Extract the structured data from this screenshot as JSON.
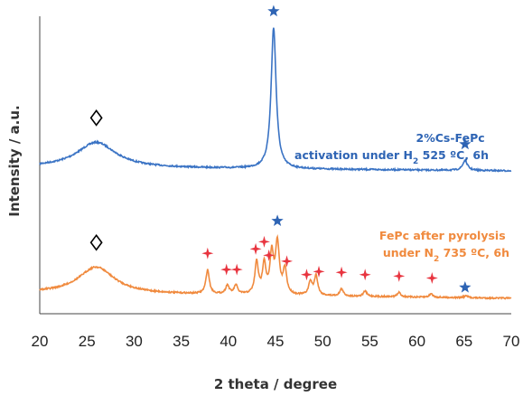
{
  "chart_data": {
    "type": "line",
    "xlabel": "2 theta / degree",
    "ylabel": "Intensity / a.u.",
    "xlim": [
      20,
      70
    ],
    "xticks": [
      "20",
      "25",
      "30",
      "35",
      "40",
      "45",
      "50",
      "55",
      "60",
      "65",
      "70"
    ],
    "grid": false,
    "legend": "none",
    "series": [
      {
        "color": "#3a73c4",
        "annotation": [
          "2%Cs-FePc",
          "activation under H",
          "2",
          " 525 ºC, 6h"
        ],
        "peaks": [
          {
            "x": 26.0,
            "height": 0.18,
            "width": 2.5
          },
          {
            "x": 44.8,
            "height": 1.0,
            "width": 0.32
          },
          {
            "x": 65.1,
            "height": 0.07,
            "width": 0.3
          }
        ],
        "markers": [
          {
            "symbol": "diamond",
            "x": 26.0
          },
          {
            "symbol": "star",
            "x": 44.8
          },
          {
            "symbol": "star",
            "x": 65.1
          }
        ]
      },
      {
        "color": "#f08a3e",
        "annotation": [
          "FePc after pyrolysis",
          "under N",
          "2",
          " 735 ºC, 6h"
        ],
        "peaks": [
          {
            "x": 26.0,
            "height": 0.3,
            "width": 2.3
          },
          {
            "x": 37.8,
            "height": 0.27,
            "width": 0.22
          },
          {
            "x": 39.9,
            "height": 0.1,
            "width": 0.22
          },
          {
            "x": 40.8,
            "height": 0.1,
            "width": 0.22
          },
          {
            "x": 43.0,
            "height": 0.36,
            "width": 0.22
          },
          {
            "x": 43.8,
            "height": 0.34,
            "width": 0.22
          },
          {
            "x": 44.6,
            "height": 0.44,
            "width": 0.22
          },
          {
            "x": 45.2,
            "height": 0.57,
            "width": 0.25
          },
          {
            "x": 46.0,
            "height": 0.28,
            "width": 0.22
          },
          {
            "x": 48.7,
            "height": 0.15,
            "width": 0.22
          },
          {
            "x": 49.3,
            "height": 0.22,
            "width": 0.22
          },
          {
            "x": 52.0,
            "height": 0.08,
            "width": 0.22
          },
          {
            "x": 54.5,
            "height": 0.06,
            "width": 0.22
          },
          {
            "x": 58.1,
            "height": 0.05,
            "width": 0.22
          },
          {
            "x": 61.5,
            "height": 0.04,
            "width": 0.22
          },
          {
            "x": 65.2,
            "height": 0.02,
            "width": 0.25
          }
        ],
        "markers": [
          {
            "symbol": "diamond",
            "x": 26.0
          },
          {
            "symbol": "plus",
            "x": 37.8
          },
          {
            "symbol": "plus",
            "x": 39.8
          },
          {
            "symbol": "plus",
            "x": 40.9
          },
          {
            "symbol": "plus",
            "x": 42.9
          },
          {
            "symbol": "plus",
            "x": 43.8
          },
          {
            "symbol": "plus",
            "x": 44.3
          },
          {
            "symbol": "star",
            "x": 45.2
          },
          {
            "symbol": "plus",
            "x": 46.2
          },
          {
            "symbol": "plus",
            "x": 48.3
          },
          {
            "symbol": "plus",
            "x": 49.6
          },
          {
            "symbol": "plus",
            "x": 52.0
          },
          {
            "symbol": "plus",
            "x": 54.5
          },
          {
            "symbol": "plus",
            "x": 58.1
          },
          {
            "symbol": "plus",
            "x": 61.6
          },
          {
            "symbol": "star",
            "x": 65.1
          }
        ]
      }
    ],
    "marker_colors": {
      "star": "#2e64b4",
      "plus": "#e8343f",
      "diamond": "#000000"
    }
  }
}
